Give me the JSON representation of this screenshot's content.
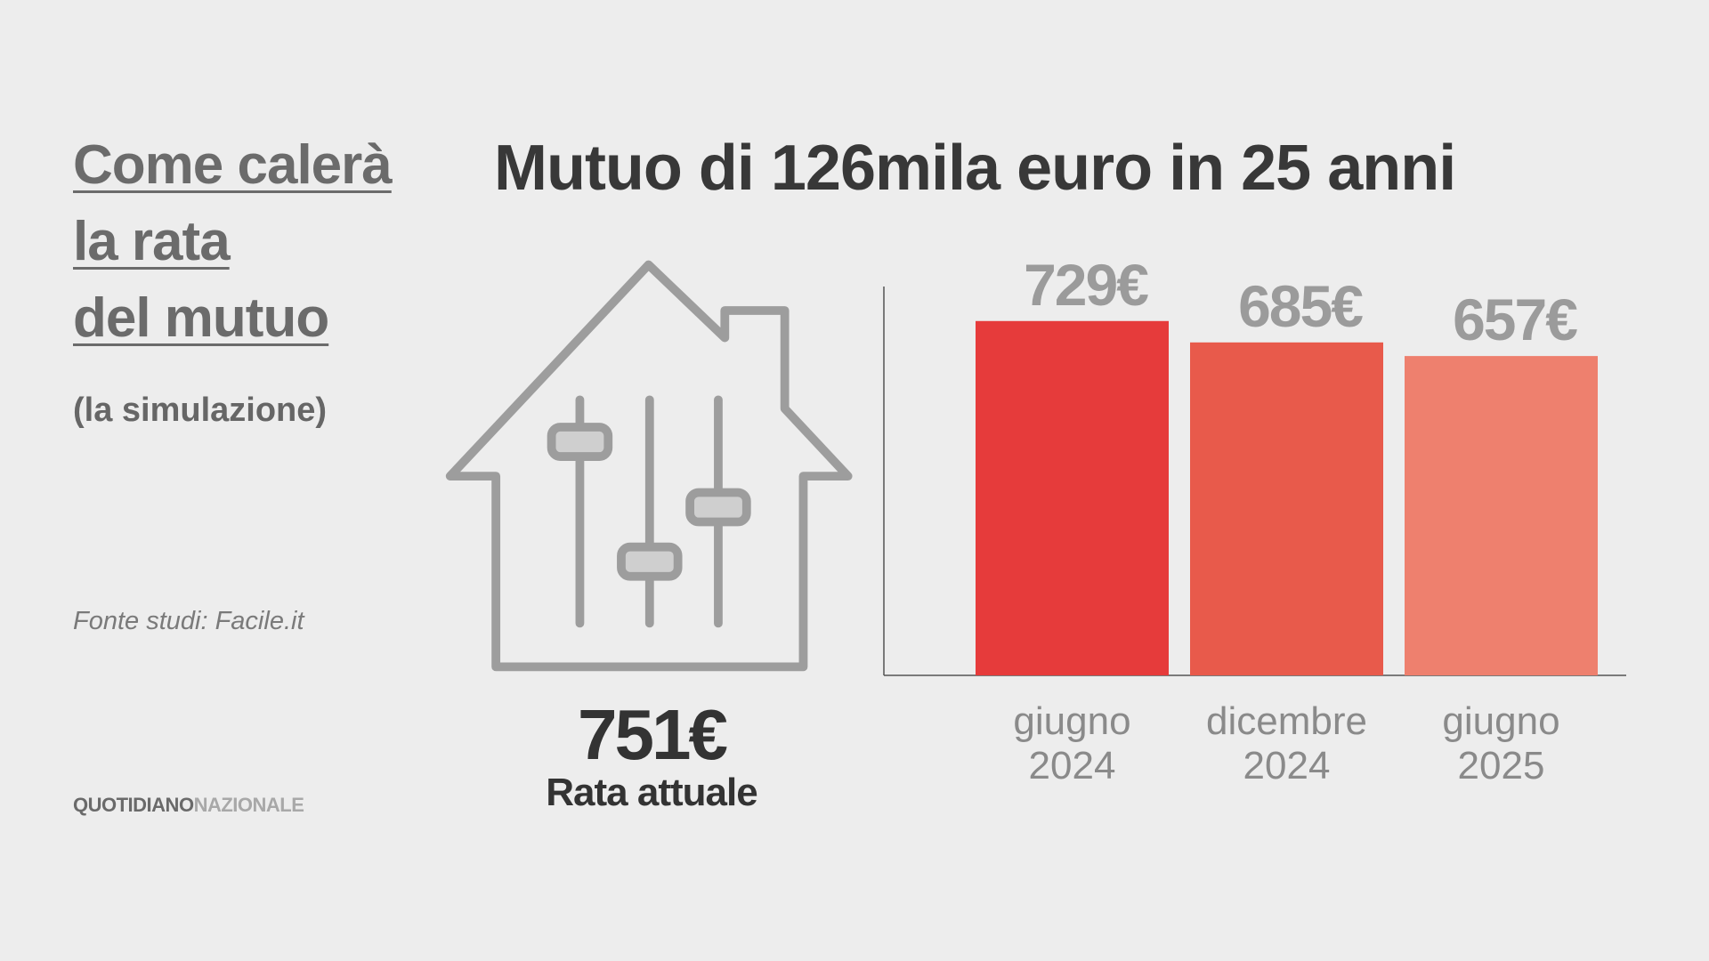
{
  "header": {
    "heading_lines": [
      "Come calerà",
      "la rata",
      "del mutuo"
    ],
    "subheading": "(la simulazione)",
    "source": "Fonte studi: Facile.it",
    "brand": [
      "QUOTIDIANO",
      "NAZIONALE"
    ]
  },
  "current_rate": {
    "amount": "751€",
    "label": "Rata attuale"
  },
  "chart_data": {
    "type": "bar",
    "title": "Mutuo di 126mila euro in 25 anni",
    "categories": [
      "giugno 2024",
      "dicembre 2024",
      "giugno 2025"
    ],
    "values": [
      729,
      685,
      657
    ],
    "value_labels": [
      "729€",
      "685€",
      "657€"
    ],
    "colors": [
      "#e63b3b",
      "#e85a4b",
      "#ee806e"
    ],
    "ylim": [
      0,
      800
    ],
    "grid": false
  }
}
